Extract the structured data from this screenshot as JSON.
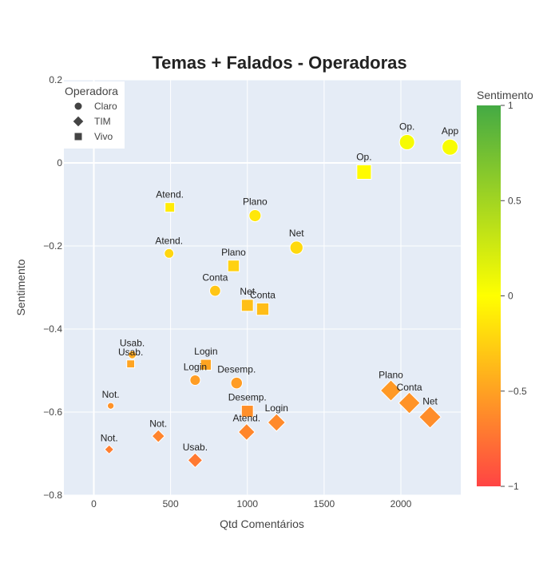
{
  "chart_data": {
    "type": "scatter",
    "title": "Temas + Falados - Operadoras",
    "xlabel": "Qtd Comentários",
    "ylabel": "Sentimento",
    "xlim": [
      -195,
      2390
    ],
    "ylim": [
      -0.8,
      0.2
    ],
    "x_ticks": [
      0,
      500,
      1000,
      1500,
      2000
    ],
    "y_ticks": [
      -0.8,
      -0.6,
      -0.4,
      -0.2,
      0,
      0.2
    ],
    "y_tick_labels": [
      "−0.8",
      "−0.6",
      "−0.4",
      "−0.2",
      "0",
      "0.2"
    ],
    "grid": true,
    "legend": {
      "title": "Operadora",
      "placement": "top-left",
      "entries": [
        {
          "name": "Claro",
          "symbol": "circle"
        },
        {
          "name": "TIM",
          "symbol": "diamond"
        },
        {
          "name": "Vivo",
          "symbol": "square"
        }
      ]
    },
    "colorbar": {
      "title": "Sentimento",
      "range": [
        -1,
        1
      ],
      "ticks": [
        1,
        0.5,
        0,
        -0.5,
        -1
      ],
      "tick_labels": [
        "1",
        "0.5",
        "0",
        "−0.5",
        "−1"
      ],
      "colorscale": [
        [
          0,
          "#ff4444"
        ],
        [
          0.5,
          "#ffff00"
        ],
        [
          1,
          "#44aa44"
        ]
      ]
    },
    "series": [
      {
        "name": "Claro",
        "symbol": "circle",
        "points": [
          {
            "label": "App",
            "x": 2320,
            "y": 0.038
          },
          {
            "label": "Op.",
            "x": 2040,
            "y": 0.05
          },
          {
            "label": "Net",
            "x": 1320,
            "y": -0.204
          },
          {
            "label": "Plano",
            "x": 1050,
            "y": -0.127
          },
          {
            "label": "Atend.",
            "x": 490,
            "y": -0.218
          },
          {
            "label": "Conta",
            "x": 790,
            "y": -0.308
          },
          {
            "label": "Login",
            "x": 660,
            "y": -0.523
          },
          {
            "label": "Desemp.",
            "x": 930,
            "y": -0.53
          },
          {
            "label": "Usab.",
            "x": 250,
            "y": -0.462
          },
          {
            "label": "Not.",
            "x": 110,
            "y": -0.585
          }
        ]
      },
      {
        "name": "TIM",
        "symbol": "diamond",
        "points": [
          {
            "label": "Plano",
            "x": 1935,
            "y": -0.548
          },
          {
            "label": "Conta",
            "x": 2055,
            "y": -0.578
          },
          {
            "label": "Net",
            "x": 2190,
            "y": -0.612
          },
          {
            "label": "Login",
            "x": 1190,
            "y": -0.625
          },
          {
            "label": "Atend.",
            "x": 995,
            "y": -0.648
          },
          {
            "label": "Not.",
            "x": 420,
            "y": -0.658
          },
          {
            "label": "Usab.",
            "x": 660,
            "y": -0.716
          },
          {
            "label": "Not.",
            "x": 100,
            "y": -0.69
          }
        ]
      },
      {
        "name": "Vivo",
        "symbol": "square",
        "points": [
          {
            "label": "Op.",
            "x": 1760,
            "y": -0.022
          },
          {
            "label": "Atend.",
            "x": 495,
            "y": -0.107
          },
          {
            "label": "Plano",
            "x": 910,
            "y": -0.248
          },
          {
            "label": "Net",
            "x": 1000,
            "y": -0.343
          },
          {
            "label": "Conta",
            "x": 1100,
            "y": -0.352
          },
          {
            "label": "Login",
            "x": 730,
            "y": -0.486
          },
          {
            "label": "Usab.",
            "x": 240,
            "y": -0.484
          },
          {
            "label": "Desemp.",
            "x": 1000,
            "y": -0.598
          }
        ]
      }
    ]
  }
}
